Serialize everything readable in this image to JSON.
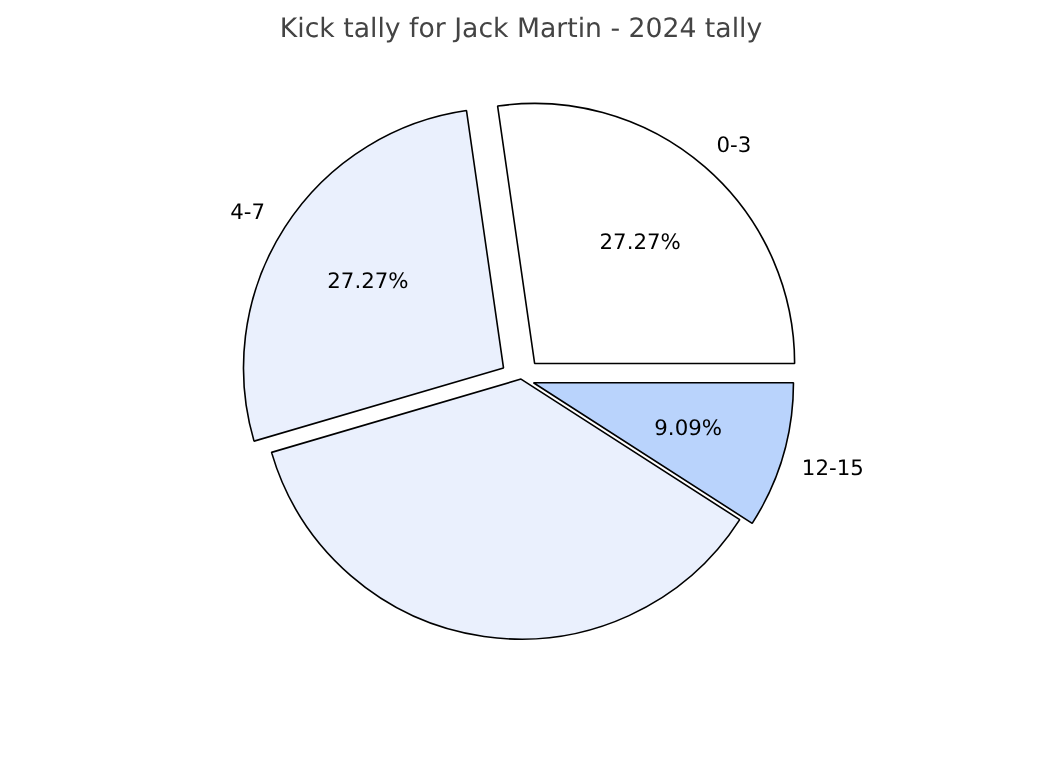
{
  "chart_data": {
    "type": "pie",
    "title": "Kick tally for Jack Martin - 2024 tally",
    "categories": [
      "0-3",
      "4-7",
      null,
      "12-15"
    ],
    "values": [
      27.27,
      27.27,
      36.36,
      9.09
    ],
    "colors": [
      "#ffffff",
      "#eaf0fd",
      "#eaf0fd",
      "#b9d3fc"
    ],
    "value_labels": [
      "27.27%",
      "27.27%",
      null,
      "9.09%"
    ],
    "legend": false
  }
}
